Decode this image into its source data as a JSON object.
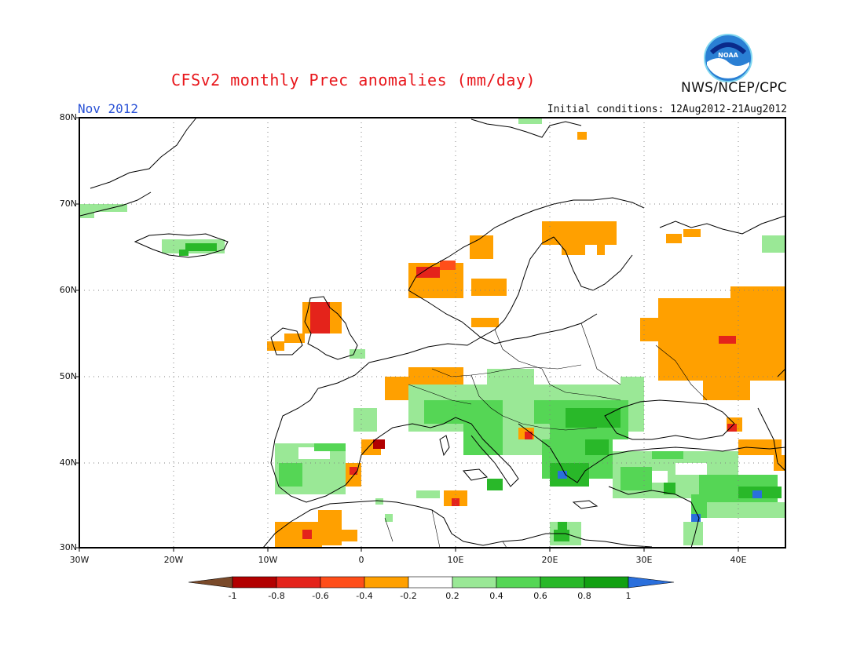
{
  "header": {
    "title": "CFSv2 monthly Prec anomalies (mm/day)",
    "agency": "NWS/NCEP/CPC",
    "logo_text": "NOAA",
    "period": "Nov 2012",
    "initial_conditions": "Initial conditions: 12Aug2012-21Aug2012"
  },
  "map": {
    "lat_labels": [
      "80N",
      "70N",
      "60N",
      "50N",
      "40N",
      "30N"
    ],
    "lon_labels": [
      "30W",
      "20W",
      "10W",
      "0",
      "10E",
      "20E",
      "30E",
      "40E"
    ],
    "extent": {
      "lon": [
        -30,
        45
      ],
      "lat": [
        30,
        80
      ]
    }
  },
  "colorbar": {
    "labels": [
      "-1",
      "-0.8",
      "-0.6",
      "-0.4",
      "-0.2",
      "0.2",
      "0.4",
      "0.6",
      "0.8",
      "1"
    ],
    "colors": {
      "lt_-1": "#7a4a2a",
      "-1_-0.8": "#b20000",
      "-0.8_-0.6": "#e4231b",
      "-0.6_-0.4": "#ff4e1a",
      "-0.4_-0.2": "#ffa000",
      "-0.2_0.2": "#ffffff",
      "0.2_0.4": "#9ae896",
      "0.4_0.6": "#55d655",
      "0.6_0.8": "#29b829",
      "0.8_1": "#12a012",
      "gt_1": "#2a6fdc"
    }
  }
}
